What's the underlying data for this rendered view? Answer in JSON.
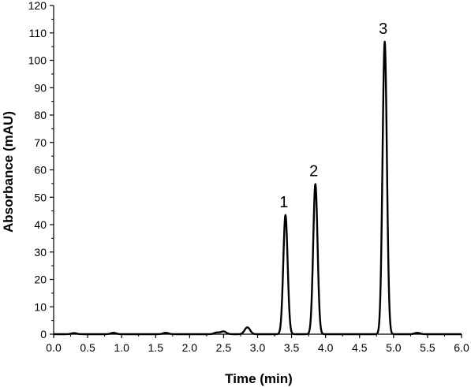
{
  "chart_data": {
    "type": "line",
    "title": "",
    "xlabel": "Time (min)",
    "ylabel": "Absorbance (mAU)",
    "xlim": [
      0.0,
      6.0
    ],
    "ylim": [
      0,
      120
    ],
    "grid": false,
    "x_ticks": [
      "0.0",
      "0.5",
      "1.0",
      "1.5",
      "2.0",
      "2.5",
      "3.0",
      "3.5",
      "4.0",
      "4.5",
      "5.0",
      "5.5",
      "6.0"
    ],
    "y_ticks": [
      "0",
      "10",
      "20",
      "30",
      "40",
      "50",
      "60",
      "70",
      "80",
      "90",
      "100",
      "110",
      "120"
    ],
    "line_color": "#000000",
    "series": [
      {
        "peaks": [
          {
            "x": 0.3,
            "y": 0.4
          },
          {
            "x": 0.88,
            "y": 0.5
          },
          {
            "x": 1.65,
            "y": 0.5
          },
          {
            "x": 2.4,
            "y": 0.6
          },
          {
            "x": 2.5,
            "y": 1.0
          },
          {
            "x": 2.85,
            "y": 2.5
          },
          {
            "x": 3.41,
            "y": 43.5
          },
          {
            "x": 3.85,
            "y": 54.8
          },
          {
            "x": 4.87,
            "y": 106.8
          },
          {
            "x": 5.35,
            "y": 0.5
          }
        ]
      }
    ],
    "annotations": [
      {
        "text": "1",
        "x": 3.41,
        "y": 43.5
      },
      {
        "text": "2",
        "x": 3.85,
        "y": 54.8
      },
      {
        "text": "3",
        "x": 4.87,
        "y": 106.8
      }
    ]
  }
}
